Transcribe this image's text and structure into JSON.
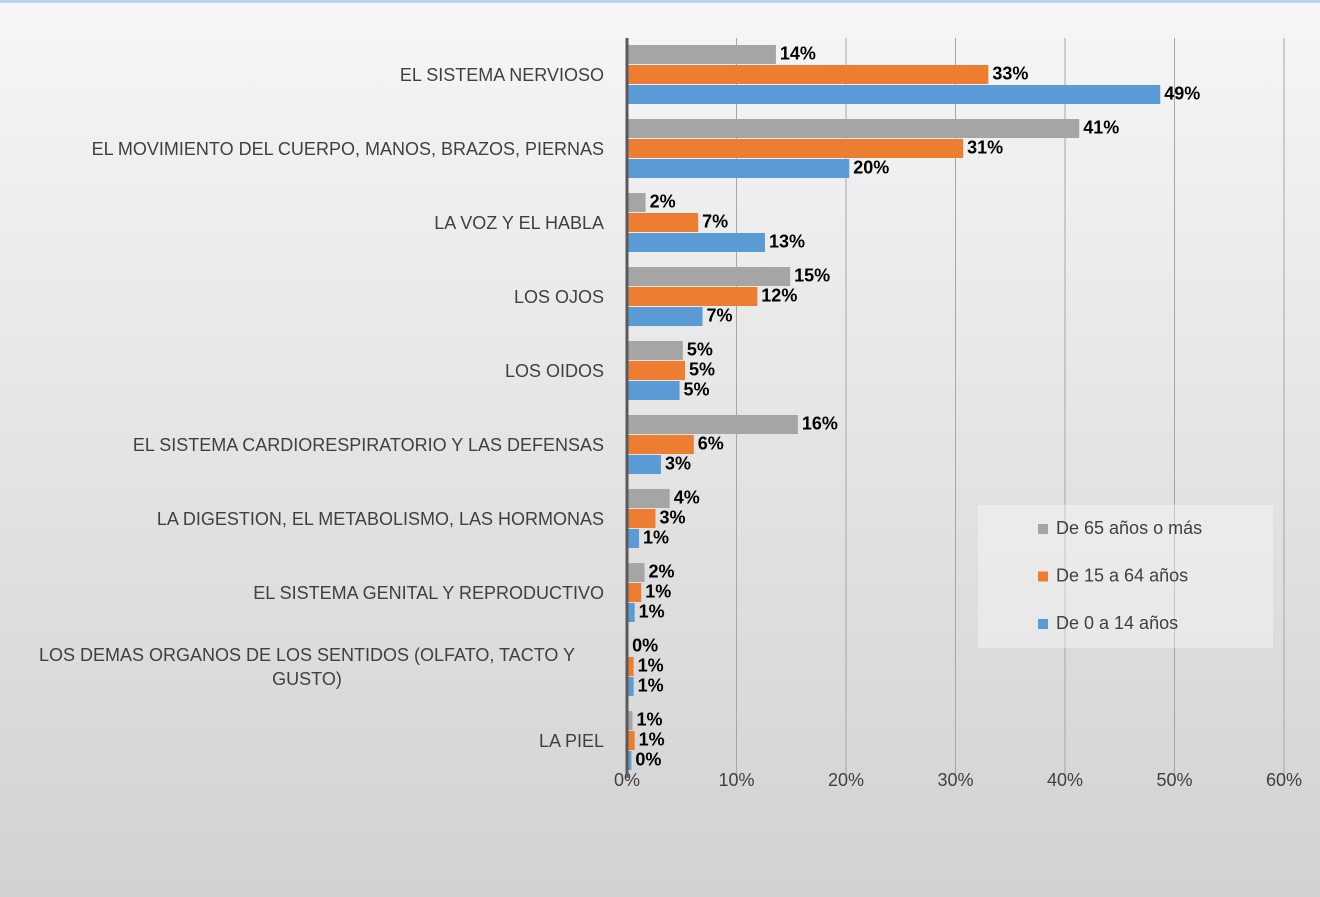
{
  "chart_data": {
    "type": "hbar",
    "categories": [
      "EL SISTEMA NERVIOSO",
      "EL MOVIMIENTO DEL CUERPO, MANOS, BRAZOS, PIERNAS",
      "LA VOZ Y EL HABLA",
      "LOS OJOS",
      "LOS OIDOS",
      "EL SISTEMA CARDIORESPIRATORIO Y LAS DEFENSAS",
      "LA DIGESTION, EL METABOLISMO, LAS HORMONAS",
      "EL SISTEMA GENITAL Y REPRODUCTIVO",
      "LOS DEMAS ORGANOS DE LOS SENTIDOS (OLFATO, TACTO Y GUSTO)",
      "LA PIEL"
    ],
    "series": [
      {
        "name": "De 65 años o más",
        "color": "#a5a5a5",
        "values": [
          13.6,
          41.3,
          1.7,
          14.9,
          5.1,
          15.6,
          3.9,
          1.6,
          0.1,
          0.5
        ],
        "value_labels": [
          "14%",
          "41%",
          "2%",
          "15%",
          "5%",
          "16%",
          "4%",
          "2%",
          "0%",
          "1%"
        ]
      },
      {
        "name": "De 15 a 64 años",
        "color": "#ed7d31",
        "values": [
          33.0,
          30.7,
          6.5,
          11.9,
          5.3,
          6.1,
          2.6,
          1.3,
          0.6,
          0.7
        ],
        "value_labels": [
          "33%",
          "31%",
          "7%",
          "12%",
          "5%",
          "6%",
          "3%",
          "1%",
          "1%",
          "1%"
        ]
      },
      {
        "name": "De 0 a 14 años",
        "color": "#5b9bd5",
        "values": [
          48.7,
          20.3,
          12.6,
          6.9,
          4.8,
          3.1,
          1.1,
          0.7,
          0.6,
          0.4
        ],
        "value_labels": [
          "49%",
          "20%",
          "13%",
          "7%",
          "5%",
          "3%",
          "1%",
          "1%",
          "1%",
          "0%"
        ]
      }
    ],
    "xlim": [
      0,
      60
    ],
    "xticks": [
      {
        "value": 0,
        "label": "0%"
      },
      {
        "value": 10,
        "label": "10%"
      },
      {
        "value": 20,
        "label": "20%"
      },
      {
        "value": 30,
        "label": "30%"
      },
      {
        "value": 40,
        "label": "40%"
      },
      {
        "value": 50,
        "label": "50%"
      },
      {
        "value": 60,
        "label": "60%"
      }
    ],
    "grid": true,
    "legend": "right"
  }
}
